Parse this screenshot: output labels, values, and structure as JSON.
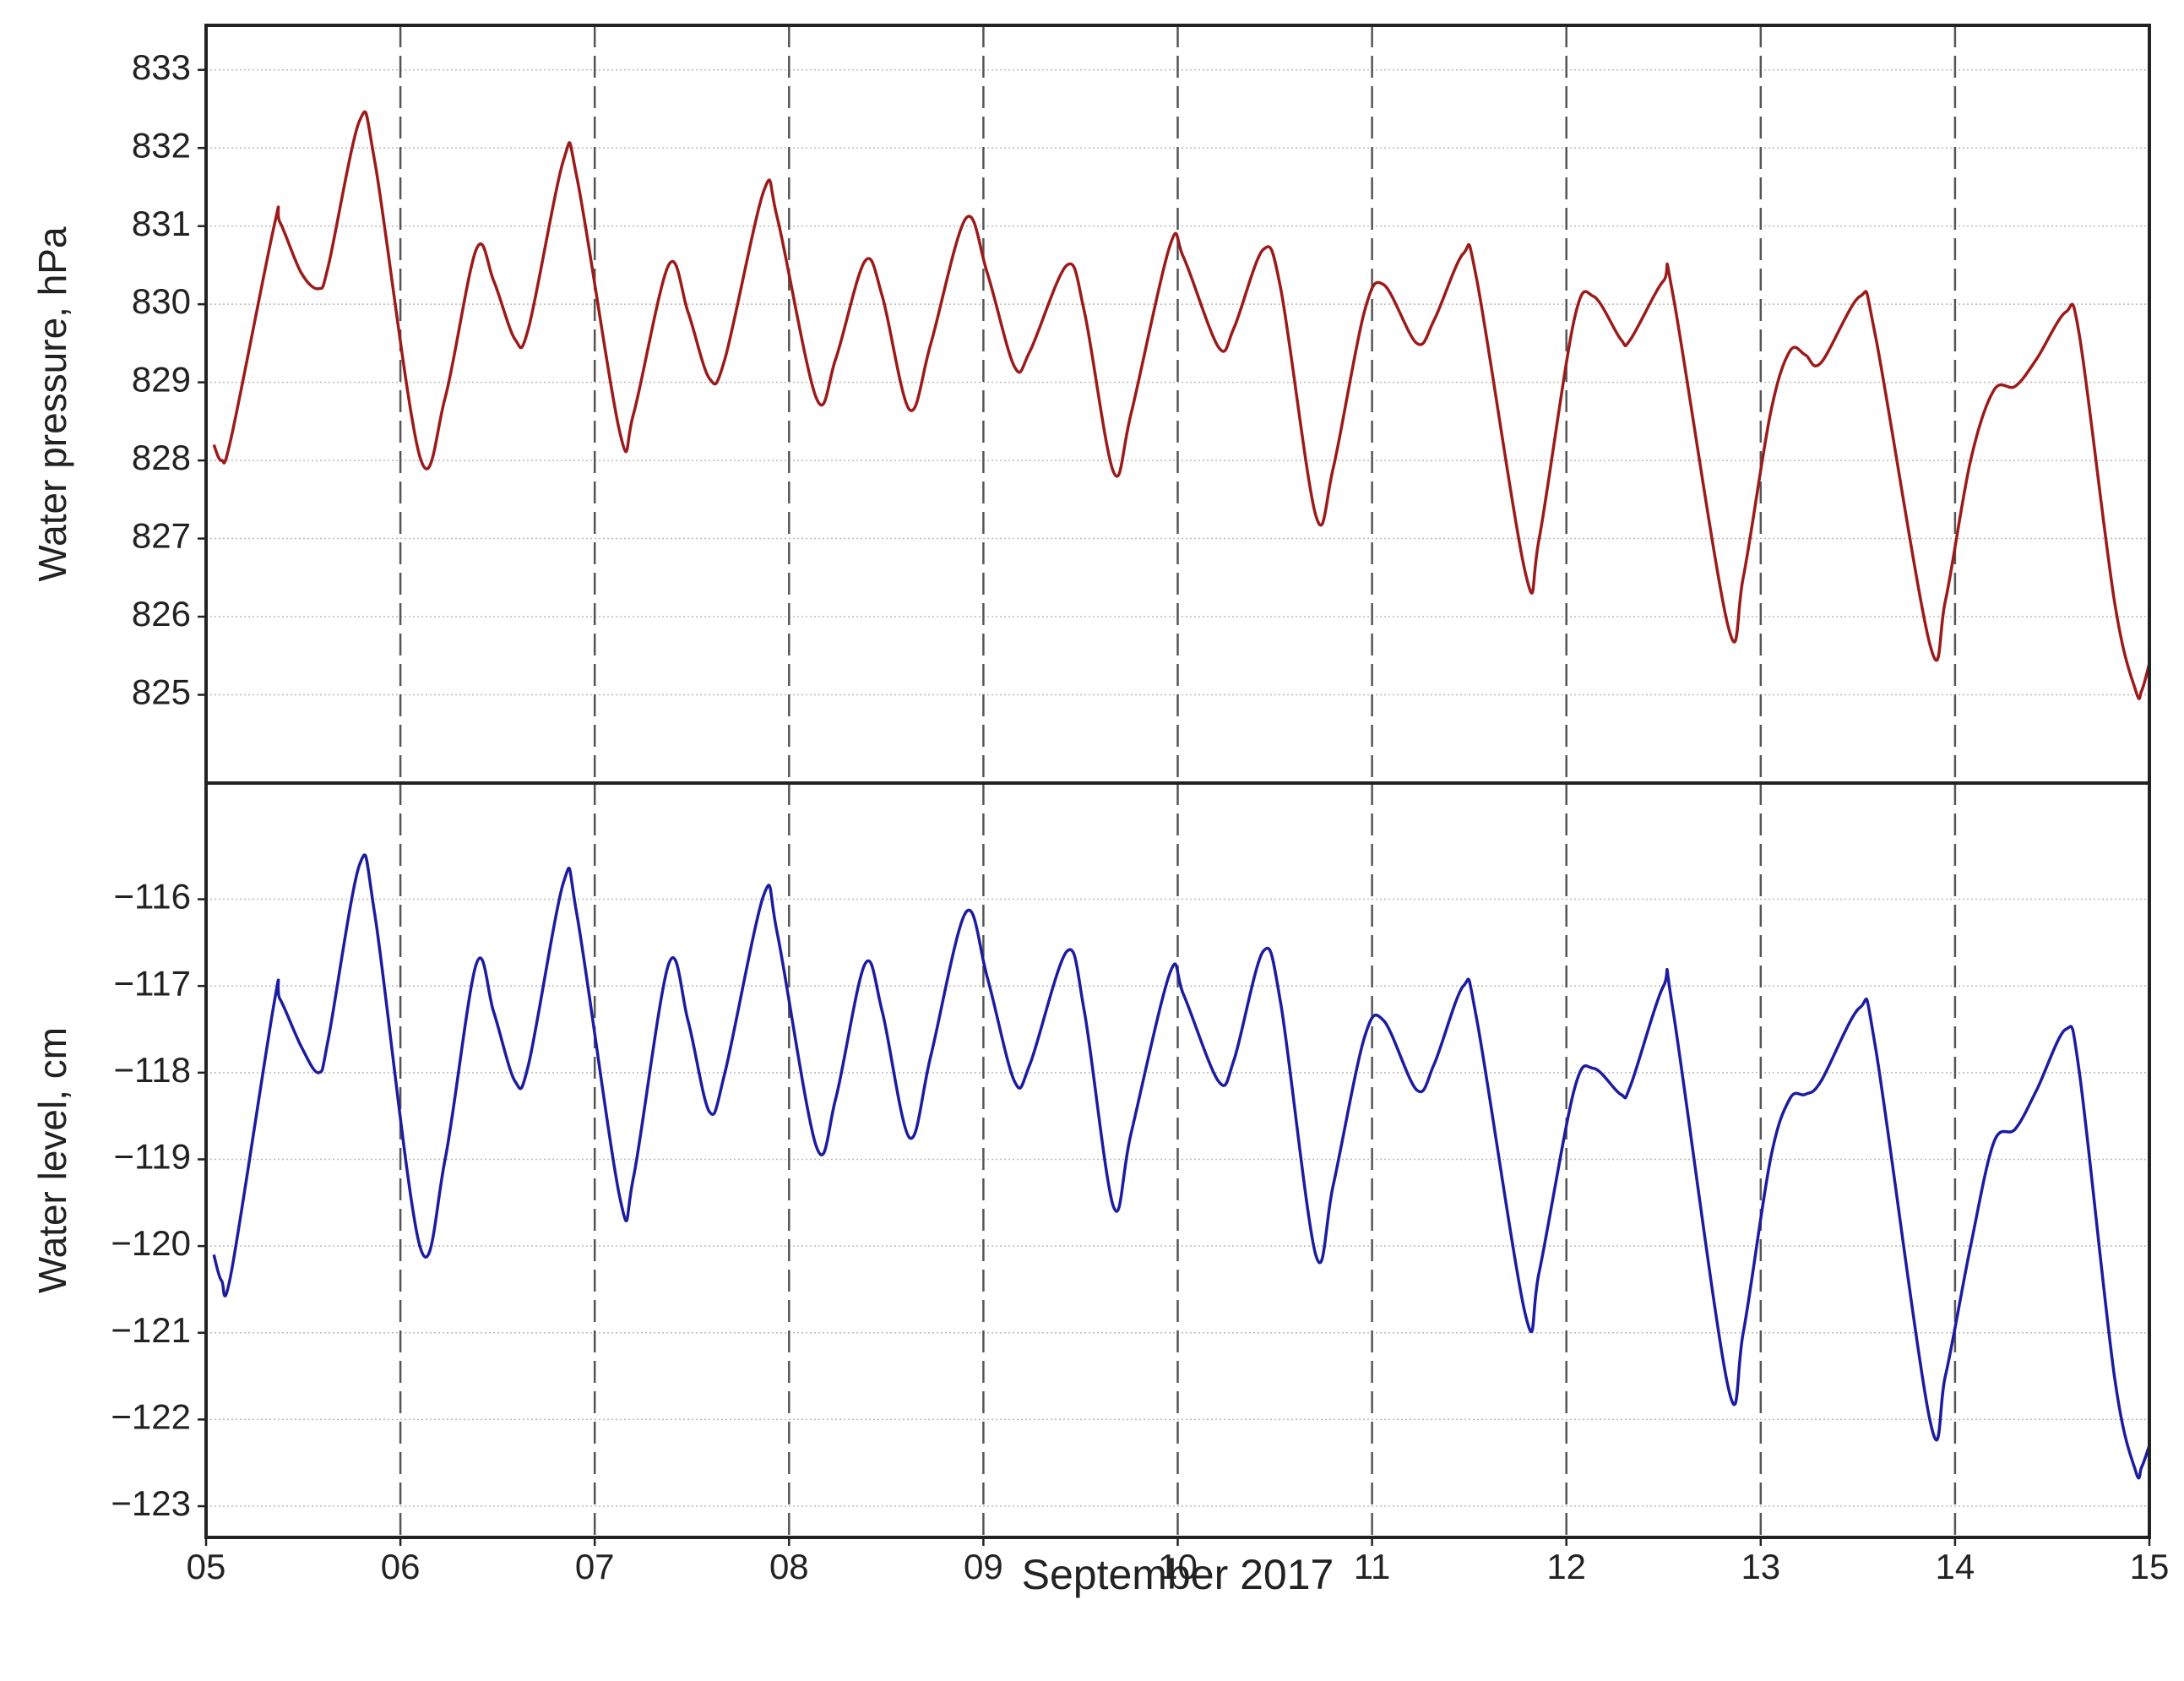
{
  "chart_data": [
    {
      "type": "line",
      "ylabel": "Water pressure, hPa",
      "x": [
        5.04,
        5.08,
        5.13,
        5.35,
        5.38,
        5.49,
        5.58,
        5.63,
        5.79,
        5.87,
        6.1,
        6.23,
        6.39,
        6.48,
        6.59,
        6.66,
        6.84,
        6.91,
        7.13,
        7.2,
        7.38,
        7.48,
        7.59,
        7.67,
        7.87,
        7.94,
        8.14,
        8.24,
        8.39,
        8.48,
        8.62,
        8.73,
        8.91,
        9.02,
        9.16,
        9.24,
        9.43,
        9.52,
        9.67,
        9.76,
        9.96,
        10.03,
        10.21,
        10.29,
        10.44,
        10.53,
        10.71,
        10.8,
        10.96,
        11.06,
        11.23,
        11.32,
        11.47,
        11.54,
        11.79,
        11.86,
        12.04,
        12.14,
        12.28,
        12.33,
        12.5,
        12.55,
        12.83,
        12.91,
        13.05,
        13.15,
        13.23,
        13.31,
        13.51,
        13.59,
        13.87,
        13.95,
        14.08,
        14.2,
        14.31,
        14.42,
        14.57,
        14.64,
        14.82,
        14.93,
        14.96,
        15.0
      ],
      "series": [
        {
          "name": "Water pressure",
          "color": "#9b1b1b",
          "values": [
            828.2,
            828.0,
            828.3,
            831.0,
            831.05,
            830.4,
            830.2,
            830.5,
            832.35,
            831.8,
            828.05,
            828.8,
            830.7,
            830.3,
            829.55,
            829.7,
            831.85,
            831.6,
            828.35,
            828.6,
            830.5,
            829.9,
            829.05,
            829.3,
            831.45,
            831.1,
            828.8,
            829.3,
            830.55,
            830.1,
            828.65,
            829.5,
            831.1,
            830.4,
            829.2,
            829.4,
            830.5,
            829.9,
            827.85,
            828.6,
            830.75,
            830.6,
            829.45,
            829.7,
            830.7,
            830.2,
            827.3,
            827.9,
            829.9,
            830.25,
            829.5,
            829.8,
            830.65,
            830.3,
            826.55,
            827.0,
            829.8,
            830.1,
            829.55,
            829.55,
            830.3,
            830.1,
            825.9,
            826.5,
            828.6,
            829.4,
            829.35,
            829.25,
            830.1,
            829.6,
            825.65,
            826.2,
            828.0,
            828.9,
            828.95,
            829.3,
            829.9,
            829.6,
            826.2,
            825.05,
            825.05,
            825.4
          ]
        }
      ],
      "xlim": [
        5,
        15
      ],
      "xticks": [
        5,
        6,
        7,
        8,
        9,
        10,
        11,
        12,
        13,
        14,
        15
      ],
      "ylim": [
        823.87,
        833.57
      ],
      "yticks": [
        825,
        826,
        827,
        828,
        829,
        830,
        831,
        832,
        833
      ],
      "grid": true
    },
    {
      "type": "line",
      "ylabel": "Water level, cm",
      "xlabel": "September 2017",
      "x": [
        5.04,
        5.08,
        5.13,
        5.35,
        5.38,
        5.49,
        5.58,
        5.63,
        5.79,
        5.87,
        6.1,
        6.23,
        6.39,
        6.48,
        6.59,
        6.66,
        6.84,
        6.91,
        7.13,
        7.2,
        7.38,
        7.48,
        7.59,
        7.67,
        7.87,
        7.94,
        8.14,
        8.24,
        8.39,
        8.48,
        8.62,
        8.73,
        8.91,
        9.02,
        9.16,
        9.24,
        9.43,
        9.52,
        9.67,
        9.76,
        9.96,
        10.03,
        10.21,
        10.29,
        10.44,
        10.53,
        10.71,
        10.8,
        10.96,
        11.06,
        11.23,
        11.32,
        11.47,
        11.54,
        11.79,
        11.86,
        12.04,
        12.14,
        12.28,
        12.33,
        12.5,
        12.55,
        12.83,
        12.91,
        13.05,
        13.15,
        13.23,
        13.31,
        13.51,
        13.59,
        13.87,
        13.95,
        14.08,
        14.2,
        14.31,
        14.42,
        14.57,
        14.64,
        14.82,
        14.93,
        14.96,
        15.0
      ],
      "series": [
        {
          "name": "Water level",
          "color": "#1c1ca0",
          "values": [
            -120.1,
            -120.4,
            -120.3,
            -117.2,
            -117.15,
            -117.7,
            -118.0,
            -117.6,
            -115.6,
            -116.2,
            -120.0,
            -119.0,
            -116.75,
            -117.3,
            -118.1,
            -117.9,
            -115.8,
            -116.2,
            -119.45,
            -119.2,
            -116.75,
            -117.4,
            -118.45,
            -118.0,
            -115.95,
            -116.4,
            -118.85,
            -118.3,
            -116.75,
            -117.3,
            -118.75,
            -117.8,
            -116.15,
            -116.9,
            -118.1,
            -117.9,
            -116.6,
            -117.3,
            -119.55,
            -118.7,
            -116.85,
            -117.1,
            -118.1,
            -117.85,
            -116.6,
            -117.2,
            -120.1,
            -119.3,
            -117.6,
            -117.4,
            -118.2,
            -117.9,
            -117.0,
            -117.4,
            -120.8,
            -120.3,
            -118.2,
            -117.95,
            -118.25,
            -118.15,
            -117.0,
            -117.3,
            -121.6,
            -121.0,
            -119.0,
            -118.3,
            -118.25,
            -118.1,
            -117.25,
            -117.7,
            -122.0,
            -121.5,
            -120.0,
            -118.8,
            -118.65,
            -118.2,
            -117.5,
            -118.0,
            -121.5,
            -122.6,
            -122.55,
            -122.3
          ]
        }
      ],
      "xlim": [
        5,
        15
      ],
      "xticks": [
        {
          "value": 5,
          "label": "05"
        },
        {
          "value": 6,
          "label": "06"
        },
        {
          "value": 7,
          "label": "07"
        },
        {
          "value": 8,
          "label": "08"
        },
        {
          "value": 9,
          "label": "09"
        },
        {
          "value": 10,
          "label": "10"
        },
        {
          "value": 11,
          "label": "11"
        },
        {
          "value": 12,
          "label": "12"
        },
        {
          "value": 13,
          "label": "13"
        },
        {
          "value": 14,
          "label": "14"
        },
        {
          "value": 15,
          "label": "15"
        }
      ],
      "ylim": [
        -123.36,
        -114.66
      ],
      "yticks": [
        {
          "value": -123,
          "label": "−123"
        },
        {
          "value": -122,
          "label": "−122"
        },
        {
          "value": -121,
          "label": "−121"
        },
        {
          "value": -120,
          "label": "−120"
        },
        {
          "value": -119,
          "label": "−119"
        },
        {
          "value": -118,
          "label": "−118"
        },
        {
          "value": -117,
          "label": "−117"
        },
        {
          "value": -116,
          "label": "−116"
        }
      ],
      "grid": true
    }
  ]
}
